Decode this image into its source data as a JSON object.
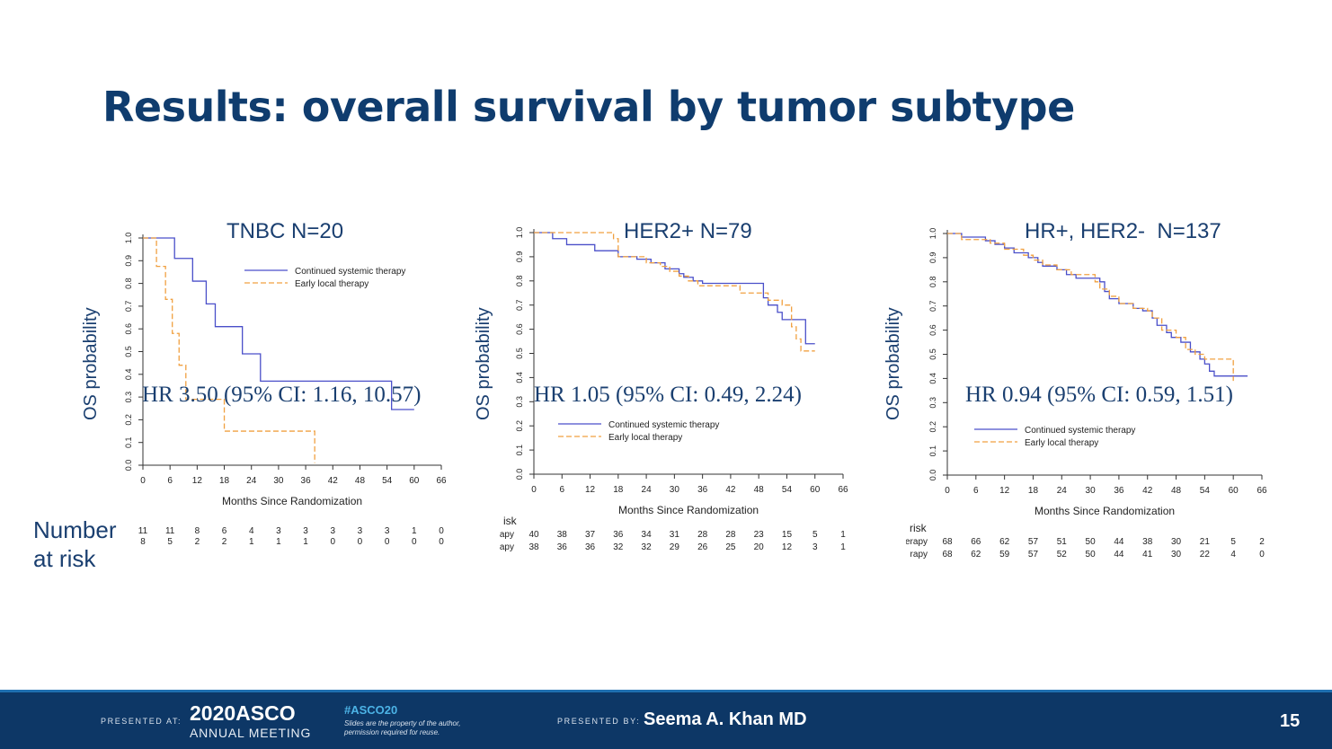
{
  "slide": {
    "title": "Results: overall survival by tumor subtype",
    "risk_label": "Number\nat risk",
    "y_axis_label": "OS probability"
  },
  "chart_data": [
    {
      "type": "line",
      "title": "TNBC N=20",
      "xlabel": "Months Since Randomization",
      "ylabel": "OS probability",
      "xlim": [
        0,
        66
      ],
      "ylim": [
        0,
        1
      ],
      "x_ticks": [
        "0",
        "6",
        "12",
        "18",
        "24",
        "30",
        "36",
        "42",
        "48",
        "54",
        "60",
        "66"
      ],
      "y_ticks": [
        "0.0",
        "0.1",
        "0.2",
        "0.3",
        "0.4",
        "0.5",
        "0.6",
        "0.7",
        "0.8",
        "0.9",
        "1.0"
      ],
      "legend": [
        "Continued systemic therapy",
        "Early local therapy"
      ],
      "legend_position": "top-right",
      "annotation": "HR 3.50 (95% CI: 1.16, 10.57)",
      "series": [
        {
          "name": "Continued systemic therapy",
          "color": "#4a4fc9",
          "dash": false,
          "steps": [
            [
              0,
              1.0
            ],
            [
              7,
              0.91
            ],
            [
              11,
              0.81
            ],
            [
              14,
              0.71
            ],
            [
              16,
              0.61
            ],
            [
              22,
              0.49
            ],
            [
              26,
              0.37
            ],
            [
              55,
              0.37
            ],
            [
              55,
              0.245
            ],
            [
              60,
              0.245
            ]
          ]
        },
        {
          "name": "Early local therapy",
          "color": "#f0a040",
          "dash": true,
          "steps": [
            [
              0,
              1.0
            ],
            [
              3,
              0.875
            ],
            [
              5,
              0.73
            ],
            [
              6.5,
              0.58
            ],
            [
              8,
              0.44
            ],
            [
              9.5,
              0.29
            ],
            [
              18,
              0.29
            ],
            [
              18,
              0.15
            ],
            [
              38,
              0.15
            ],
            [
              38,
              0.01
            ]
          ]
        }
      ],
      "risk_rows": [
        {
          "label": "",
          "values": [
            "11",
            "11",
            "8",
            "6",
            "4",
            "3",
            "3",
            "3",
            "3",
            "3",
            "1",
            "0"
          ]
        },
        {
          "label": "",
          "values": [
            "8",
            "5",
            "2",
            "2",
            "1",
            "1",
            "1",
            "0",
            "0",
            "0",
            "0",
            "0"
          ]
        }
      ]
    },
    {
      "type": "line",
      "title": "HER2+ N=79",
      "xlabel": "Months Since Randomization",
      "ylabel": "OS probability",
      "xlim": [
        0,
        66
      ],
      "ylim": [
        0,
        1
      ],
      "x_ticks": [
        "0",
        "6",
        "12",
        "18",
        "24",
        "30",
        "36",
        "42",
        "48",
        "54",
        "60",
        "66"
      ],
      "y_ticks": [
        "0.0",
        "0.1",
        "0.2",
        "0.3",
        "0.4",
        "0.5",
        "0.6",
        "0.7",
        "0.8",
        "0.9",
        "1.0"
      ],
      "legend": [
        "Continued systemic therapy",
        "Early local therapy"
      ],
      "legend_position": "bottom-right",
      "annotation": "HR 1.05 (95% CI: 0.49, 2.24)",
      "risk_header": "isk",
      "series": [
        {
          "name": "Continued systemic therapy",
          "color": "#4a4fc9",
          "dash": false,
          "steps": [
            [
              0,
              1.0
            ],
            [
              4,
              0.975
            ],
            [
              7,
              0.95
            ],
            [
              13,
              0.925
            ],
            [
              18,
              0.9
            ],
            [
              22,
              0.89
            ],
            [
              25,
              0.875
            ],
            [
              28,
              0.85
            ],
            [
              31,
              0.83
            ],
            [
              32,
              0.815
            ],
            [
              34,
              0.8
            ],
            [
              36,
              0.79
            ],
            [
              48,
              0.79
            ],
            [
              49,
              0.73
            ],
            [
              50,
              0.7
            ],
            [
              52,
              0.67
            ],
            [
              53,
              0.64
            ],
            [
              57,
              0.64
            ],
            [
              58,
              0.54
            ],
            [
              60,
              0.54
            ]
          ]
        },
        {
          "name": "Early local therapy",
          "color": "#f0a040",
          "dash": true,
          "steps": [
            [
              0,
              1.0
            ],
            [
              14,
              1.0
            ],
            [
              17,
              0.975
            ],
            [
              18,
              0.9
            ],
            [
              24,
              0.875
            ],
            [
              27,
              0.86
            ],
            [
              29,
              0.84
            ],
            [
              31,
              0.82
            ],
            [
              33,
              0.8
            ],
            [
              35,
              0.78
            ],
            [
              42,
              0.78
            ],
            [
              44,
              0.75
            ],
            [
              49,
              0.75
            ],
            [
              50,
              0.72
            ],
            [
              53,
              0.7
            ],
            [
              55,
              0.61
            ],
            [
              56,
              0.56
            ],
            [
              57,
              0.51
            ],
            [
              60,
              0.51
            ]
          ]
        }
      ],
      "risk_rows": [
        {
          "label": "apy",
          "values": [
            "40",
            "38",
            "37",
            "36",
            "34",
            "31",
            "28",
            "28",
            "23",
            "15",
            "5",
            "1"
          ]
        },
        {
          "label": "apy",
          "values": [
            "38",
            "36",
            "36",
            "32",
            "32",
            "29",
            "26",
            "25",
            "20",
            "12",
            "3",
            "1"
          ]
        }
      ]
    },
    {
      "type": "line",
      "title": "HR+, HER2-  N=137",
      "xlabel": "Months Since Randomization",
      "ylabel": "OS probability",
      "xlim": [
        0,
        66
      ],
      "ylim": [
        0,
        1
      ],
      "x_ticks": [
        "0",
        "6",
        "12",
        "18",
        "24",
        "30",
        "36",
        "42",
        "48",
        "54",
        "60",
        "66"
      ],
      "y_ticks": [
        "0.0",
        "0.1",
        "0.2",
        "0.3",
        "0.4",
        "0.5",
        "0.6",
        "0.7",
        "0.8",
        "0.9",
        "1.0"
      ],
      "legend": [
        "Continued systemic therapy",
        "Early local therapy"
      ],
      "legend_position": "bottom-left",
      "annotation": "HR 0.94 (95% CI: 0.59, 1.51)",
      "risk_header": "risk",
      "series": [
        {
          "name": "Continued systemic therapy",
          "color": "#4a4fc9",
          "dash": false,
          "steps": [
            [
              0,
              1.0
            ],
            [
              3,
              0.985
            ],
            [
              8,
              0.97
            ],
            [
              10,
              0.955
            ],
            [
              12,
              0.94
            ],
            [
              14,
              0.92
            ],
            [
              17,
              0.9
            ],
            [
              19,
              0.88
            ],
            [
              20,
              0.865
            ],
            [
              23,
              0.85
            ],
            [
              25,
              0.83
            ],
            [
              27,
              0.815
            ],
            [
              32,
              0.8
            ],
            [
              33,
              0.76
            ],
            [
              34,
              0.73
            ],
            [
              36,
              0.71
            ],
            [
              39,
              0.69
            ],
            [
              41,
              0.68
            ],
            [
              43,
              0.65
            ],
            [
              44,
              0.62
            ],
            [
              46,
              0.59
            ],
            [
              47,
              0.57
            ],
            [
              49,
              0.55
            ],
            [
              51,
              0.51
            ],
            [
              53,
              0.48
            ],
            [
              54,
              0.46
            ],
            [
              55,
              0.43
            ],
            [
              56,
              0.41
            ],
            [
              63,
              0.41
            ]
          ]
        },
        {
          "name": "Early local therapy",
          "color": "#f0a040",
          "dash": true,
          "steps": [
            [
              0,
              1.0
            ],
            [
              3,
              0.975
            ],
            [
              9,
              0.96
            ],
            [
              12,
              0.935
            ],
            [
              16,
              0.91
            ],
            [
              18,
              0.89
            ],
            [
              20,
              0.87
            ],
            [
              23,
              0.85
            ],
            [
              26,
              0.83
            ],
            [
              31,
              0.8
            ],
            [
              32,
              0.77
            ],
            [
              34,
              0.74
            ],
            [
              36,
              0.71
            ],
            [
              39,
              0.69
            ],
            [
              42,
              0.68
            ],
            [
              43,
              0.65
            ],
            [
              45,
              0.6
            ],
            [
              48,
              0.57
            ],
            [
              50,
              0.52
            ],
            [
              52,
              0.5
            ],
            [
              54,
              0.48
            ],
            [
              60,
              0.48
            ],
            [
              60,
              0.39
            ]
          ]
        }
      ],
      "risk_rows": [
        {
          "label": "erapy",
          "values": [
            "68",
            "66",
            "62",
            "57",
            "51",
            "50",
            "44",
            "38",
            "30",
            "21",
            "5",
            "2"
          ]
        },
        {
          "label": "rapy",
          "values": [
            "68",
            "62",
            "59",
            "57",
            "52",
            "50",
            "44",
            "41",
            "30",
            "22",
            "4",
            "0"
          ]
        }
      ]
    }
  ],
  "footer": {
    "presented_at": "PRESENTED AT:",
    "asco_year": "2020ASCO",
    "asco_meeting": "ANNUAL MEETING",
    "hashtag": "#ASCO20",
    "disclaimer": "Slides are the property of the author, permission required for reuse.",
    "presented_by": "PRESENTED BY:",
    "presenter": "Seema A. Khan MD",
    "page_number": "15"
  }
}
